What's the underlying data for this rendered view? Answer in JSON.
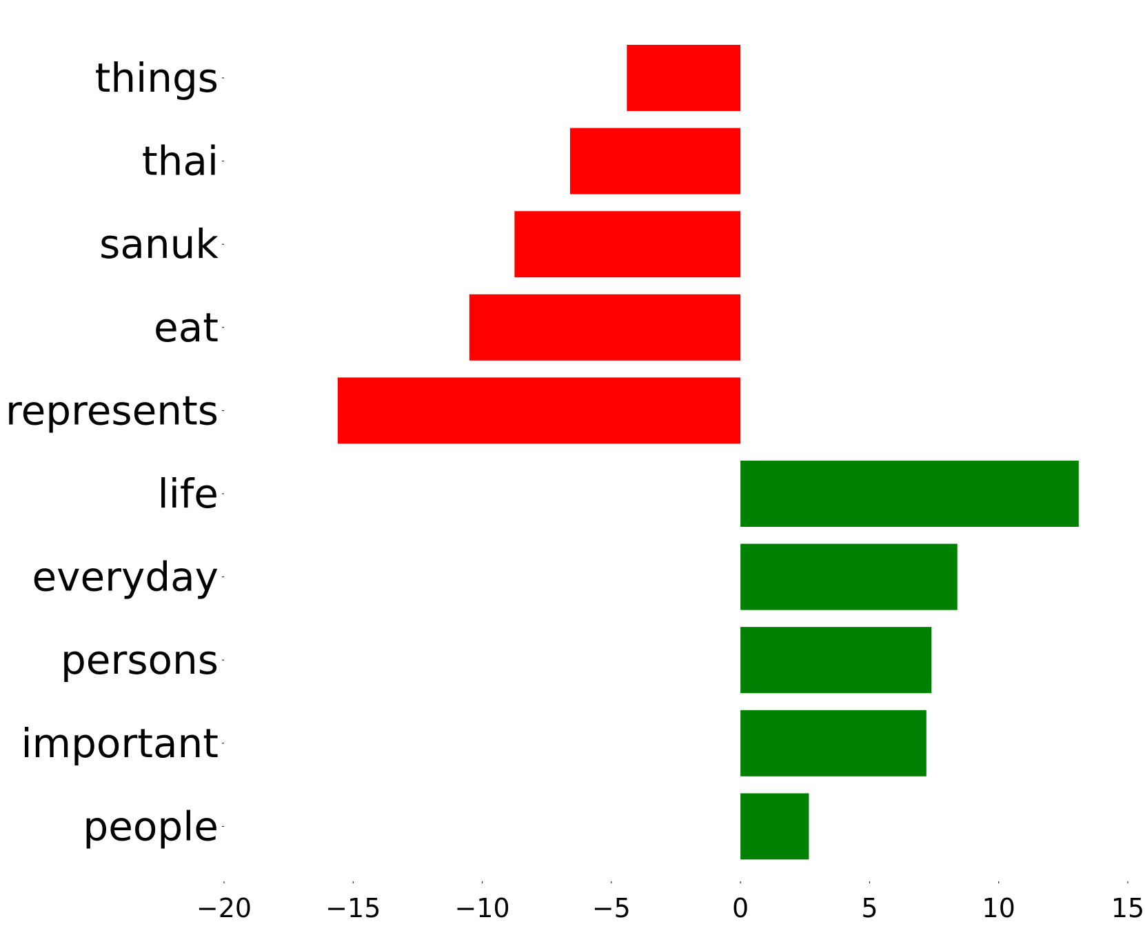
{
  "chart_data": {
    "type": "bar",
    "orientation": "horizontal",
    "categories": [
      "things",
      "thai",
      "sanuk",
      "eat",
      "represents",
      "life",
      "everyday",
      "persons",
      "important",
      "people"
    ],
    "values": [
      -4.4,
      -6.6,
      -8.75,
      -10.5,
      -15.6,
      13.1,
      8.4,
      7.4,
      7.2,
      2.65
    ],
    "title": "",
    "xlabel": "",
    "ylabel": "",
    "xlim": [
      -20,
      15
    ],
    "xticks": [
      -20,
      -15,
      -10,
      -5,
      0,
      5,
      10,
      15
    ],
    "xtick_labels": [
      "−20",
      "−15",
      "−10",
      "−5",
      "0",
      "5",
      "10",
      "15"
    ],
    "grid": false,
    "legend": "none",
    "colors": {
      "negative": "#ff0000",
      "positive": "#008000"
    }
  }
}
